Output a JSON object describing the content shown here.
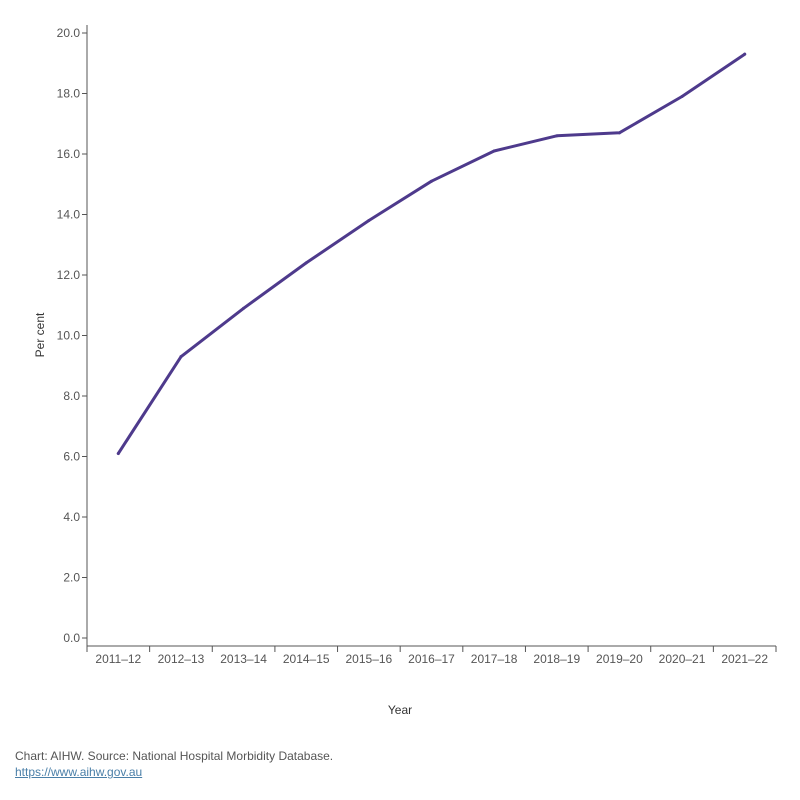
{
  "chart_data": {
    "type": "line",
    "title": "",
    "xlabel": "Year",
    "ylabel": "Per cent",
    "ylim": [
      0,
      20
    ],
    "yticks": [
      "0.0",
      "2.0",
      "4.0",
      "6.0",
      "8.0",
      "10.0",
      "12.0",
      "14.0",
      "16.0",
      "18.0",
      "20.0"
    ],
    "categories": [
      "2011–12",
      "2012–13",
      "2013–14",
      "2014–15",
      "2015–16",
      "2016–17",
      "2017–18",
      "2018–19",
      "2019–20",
      "2020–21",
      "2021–22"
    ],
    "series": [
      {
        "name": "Per cent",
        "color": "#4e3a8c",
        "values": [
          6.1,
          9.3,
          10.9,
          12.4,
          13.8,
          15.1,
          16.1,
          16.6,
          16.7,
          17.9,
          19.3
        ]
      }
    ],
    "grid": false,
    "legend": "none"
  },
  "footer": {
    "source": "Chart: AIHW.  Source: National Hospital Morbidity Database.",
    "link_text": "https://www.aihw.gov.au"
  }
}
